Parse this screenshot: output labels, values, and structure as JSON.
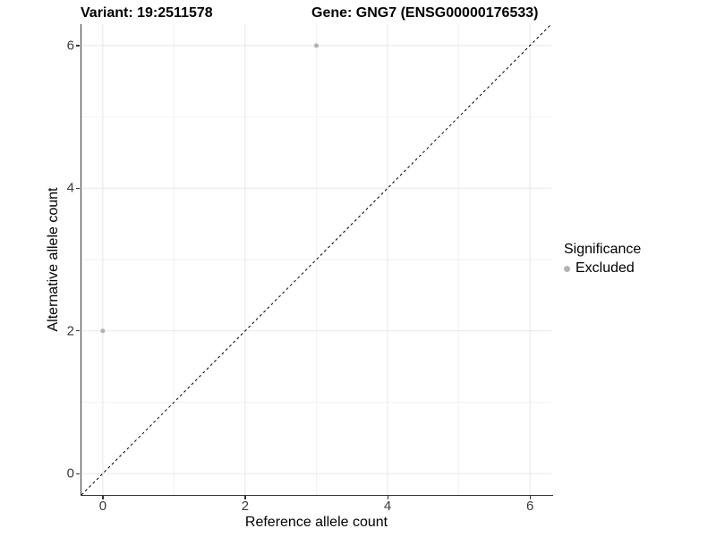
{
  "chart_data": {
    "type": "scatter",
    "title_left": "Variant: 19:2511578",
    "title_right": "Gene: GNG7 (ENSG00000176533)",
    "xlabel": "Reference allele count",
    "ylabel": "Alternative allele count",
    "xlim": [
      -0.3,
      6.3
    ],
    "ylim": [
      -0.3,
      6.3
    ],
    "x_major_ticks": [
      0,
      2,
      4,
      6
    ],
    "y_major_ticks": [
      0,
      2,
      4,
      6
    ],
    "x_minor_gridlines": [
      1,
      3,
      5
    ],
    "y_minor_gridlines": [
      1,
      3,
      5
    ],
    "grid": true,
    "points": [
      {
        "x": 3,
        "y": 6,
        "series": "Excluded"
      },
      {
        "x": 0,
        "y": 2,
        "series": "Excluded"
      }
    ],
    "identity_line": {
      "style": "dashed",
      "from": [
        -0.3,
        -0.3
      ],
      "to": [
        6.3,
        6.3
      ],
      "color": "#000000"
    },
    "legend": {
      "title": "Significance",
      "position": "right",
      "items": [
        {
          "label": "Excluded",
          "color": "#b3b3b3"
        }
      ]
    },
    "colors": {
      "point": "#b3b3b3",
      "grid_major": "#e7e7e7",
      "grid_minor": "#f2f2f2",
      "axis": "#333333",
      "background": "#ffffff"
    }
  }
}
